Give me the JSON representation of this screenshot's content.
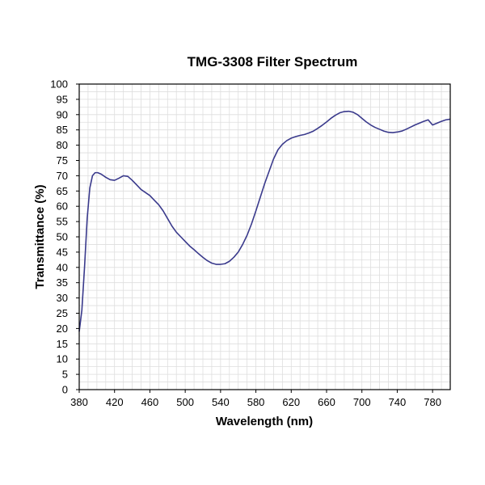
{
  "chart_data": {
    "type": "line",
    "title": "TMG-3308 Filter Spectrum",
    "xlabel": "Wavelength (nm)",
    "ylabel": "Transmittance (%)",
    "xlim": [
      380,
      800
    ],
    "ylim": [
      0,
      100
    ],
    "x_ticks": [
      "380",
      "420",
      "460",
      "500",
      "540",
      "580",
      "620",
      "660",
      "700",
      "740",
      "780"
    ],
    "y_ticks": [
      "0",
      "5",
      "10",
      "15",
      "20",
      "25",
      "30",
      "35",
      "40",
      "45",
      "50",
      "55",
      "60",
      "65",
      "70",
      "75",
      "80",
      "85",
      "90",
      "95",
      "100"
    ],
    "grid": true,
    "legend": false,
    "line_color": "#3a3a8c",
    "series": [
      {
        "x": [
          380,
          383,
          386,
          389,
          392,
          395,
          398,
          401,
          405,
          410,
          415,
          420,
          425,
          430,
          435,
          440,
          445,
          450,
          455,
          460,
          465,
          470,
          475,
          480,
          485,
          490,
          495,
          500,
          505,
          510,
          515,
          520,
          525,
          530,
          535,
          540,
          545,
          550,
          555,
          560,
          565,
          570,
          575,
          580,
          585,
          590,
          595,
          600,
          605,
          610,
          615,
          620,
          625,
          630,
          635,
          640,
          645,
          650,
          655,
          660,
          665,
          670,
          675,
          680,
          685,
          690,
          695,
          700,
          705,
          710,
          715,
          720,
          725,
          730,
          735,
          740,
          745,
          750,
          755,
          760,
          765,
          770,
          775,
          780,
          785,
          790,
          795,
          800
        ],
        "y": [
          19,
          26,
          40,
          56,
          66,
          70,
          71,
          71,
          70.5,
          69.5,
          68.7,
          68.5,
          69.2,
          70,
          69.8,
          68.5,
          67,
          65.5,
          64.5,
          63.5,
          62,
          60.5,
          58.5,
          56,
          53.5,
          51.5,
          50,
          48.5,
          47,
          45.8,
          44.5,
          43.3,
          42.2,
          41.4,
          41,
          41,
          41.2,
          42,
          43.3,
          45,
          47.5,
          50.5,
          54.2,
          58.5,
          63,
          67.5,
          71.5,
          75.5,
          78.5,
          80.3,
          81.5,
          82.3,
          82.8,
          83.2,
          83.5,
          84,
          84.6,
          85.5,
          86.5,
          87.6,
          88.8,
          89.8,
          90.6,
          91,
          91.1,
          90.8,
          90,
          88.8,
          87.6,
          86.6,
          85.8,
          85.2,
          84.6,
          84.2,
          84.1,
          84.3,
          84.6,
          85.2,
          85.9,
          86.6,
          87.2,
          87.8,
          88.3,
          86.6,
          87.2,
          87.8,
          88.3,
          88.5
        ]
      }
    ]
  }
}
